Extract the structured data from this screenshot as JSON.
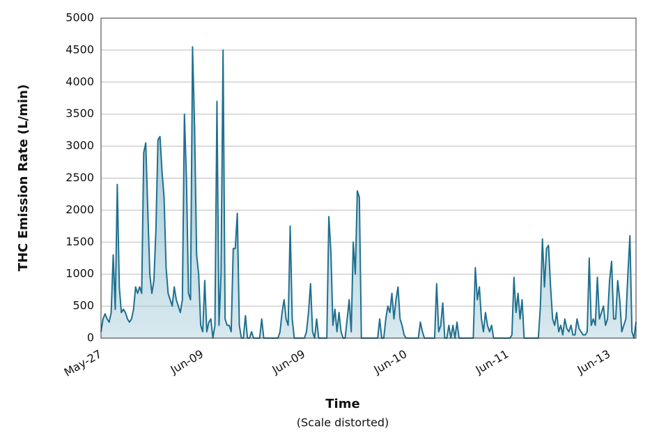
{
  "chart_data": {
    "type": "area",
    "y_label": "THC Emission Rate (L/min)",
    "x_label": "Time",
    "x_sublabel": "(Scale distorted)",
    "ylim": [
      0,
      5000
    ],
    "yticks": [
      0,
      500,
      1000,
      1500,
      2000,
      2500,
      3000,
      3500,
      4000,
      4500,
      5000
    ],
    "grid": true,
    "color": "#1f6f8e",
    "fill_color": "#8fbfd0",
    "categories": [
      "May-27",
      null,
      null,
      null,
      null,
      null,
      null,
      null,
      null,
      null,
      null,
      null,
      null,
      null,
      null,
      null,
      null,
      null,
      null,
      null,
      null,
      null,
      null,
      null,
      null,
      null,
      null,
      null,
      null,
      null,
      null,
      null,
      null,
      null,
      null,
      null,
      null,
      null,
      null,
      null,
      null,
      null,
      null,
      null,
      null,
      null,
      null,
      null,
      null,
      null,
      "Jun-09",
      null,
      null,
      null,
      null,
      null,
      null,
      null,
      null,
      null,
      null,
      null,
      null,
      null,
      null,
      null,
      null,
      null,
      null,
      null,
      null,
      null,
      null,
      null,
      null,
      null,
      null,
      null,
      null,
      null,
      null,
      null,
      null,
      null,
      null,
      null,
      null,
      null,
      null,
      null,
      null,
      null,
      null,
      null,
      null,
      null,
      null,
      null,
      null,
      null,
      "Jun-09",
      null,
      null,
      null,
      null,
      null,
      null,
      null,
      null,
      null,
      null,
      null,
      null,
      null,
      null,
      null,
      null,
      null,
      null,
      null,
      null,
      null,
      null,
      null,
      null,
      null,
      null,
      null,
      null,
      null,
      null,
      null,
      null,
      null,
      null,
      null,
      null,
      null,
      null,
      null,
      null,
      null,
      null,
      null,
      null,
      null,
      null,
      null,
      null,
      null,
      "Jun-10",
      null,
      null,
      null,
      null,
      null,
      null,
      null,
      null,
      null,
      null,
      null,
      null,
      null,
      null,
      null,
      null,
      null,
      null,
      null,
      null,
      null,
      null,
      null,
      null,
      null,
      null,
      null,
      null,
      null,
      null,
      null,
      null,
      null,
      null,
      null,
      null,
      null,
      null,
      null,
      null,
      null,
      null,
      null,
      null,
      null,
      null,
      null,
      null,
      null,
      "Jun-11",
      null,
      null,
      null,
      null,
      null,
      null,
      null,
      null,
      null,
      null,
      null,
      null,
      null,
      null,
      null,
      null,
      null,
      null,
      null,
      null,
      null,
      null,
      null,
      null,
      null,
      null,
      null,
      null,
      null,
      null,
      null,
      null,
      null,
      null,
      null,
      null,
      null,
      null,
      null,
      null,
      null,
      null,
      null,
      null,
      null,
      null,
      null,
      null,
      null,
      "Jun-13",
      null,
      null,
      null,
      null,
      null,
      null,
      null,
      null,
      null,
      null,
      null,
      null,
      null
    ],
    "values": [
      100,
      300,
      380,
      300,
      250,
      400,
      1300,
      450,
      2400,
      800,
      400,
      450,
      400,
      300,
      250,
      300,
      450,
      800,
      700,
      800,
      700,
      2900,
      3050,
      2000,
      1000,
      700,
      900,
      1700,
      3100,
      3150,
      2600,
      2200,
      1100,
      700,
      600,
      500,
      800,
      600,
      500,
      400,
      600,
      3500,
      2500,
      700,
      600,
      4550,
      3300,
      1300,
      1000,
      200,
      100,
      900,
      100,
      250,
      300,
      0,
      200,
      3700,
      200,
      1000,
      4500,
      300,
      200,
      200,
      100,
      1400,
      1400,
      1950,
      200,
      0,
      0,
      350,
      0,
      0,
      100,
      0,
      0,
      0,
      0,
      300,
      0,
      0,
      0,
      0,
      0,
      0,
      0,
      0,
      100,
      400,
      600,
      300,
      200,
      1750,
      300,
      0,
      0,
      0,
      0,
      0,
      0,
      100,
      400,
      850,
      100,
      0,
      300,
      0,
      0,
      0,
      0,
      0,
      1900,
      1350,
      200,
      450,
      100,
      400,
      100,
      0,
      0,
      300,
      600,
      100,
      1500,
      1000,
      2300,
      2200,
      0,
      0,
      0,
      0,
      0,
      0,
      0,
      0,
      0,
      300,
      0,
      0,
      300,
      500,
      400,
      700,
      300,
      600,
      800,
      300,
      200,
      50,
      0,
      0,
      0,
      0,
      0,
      0,
      0,
      250,
      100,
      0,
      0,
      0,
      0,
      0,
      0,
      850,
      100,
      200,
      550,
      0,
      0,
      200,
      0,
      200,
      0,
      250,
      0,
      0,
      0,
      0,
      0,
      0,
      0,
      0,
      1100,
      600,
      800,
      300,
      100,
      400,
      200,
      100,
      200,
      0,
      0,
      0,
      0,
      0,
      0,
      0,
      0,
      0,
      50,
      950,
      400,
      700,
      300,
      600,
      0,
      0,
      0,
      0,
      0,
      0,
      0,
      0,
      500,
      1550,
      800,
      1400,
      1450,
      800,
      300,
      200,
      400,
      100,
      200,
      50,
      300,
      150,
      100,
      200,
      50,
      50,
      300,
      150,
      100,
      50,
      50,
      100,
      1250,
      200,
      300,
      200,
      950,
      300,
      400,
      500,
      200,
      300,
      900,
      1200,
      300,
      300,
      900,
      600,
      100,
      200,
      300,
      1000,
      1600,
      100,
      0,
      250
    ]
  }
}
